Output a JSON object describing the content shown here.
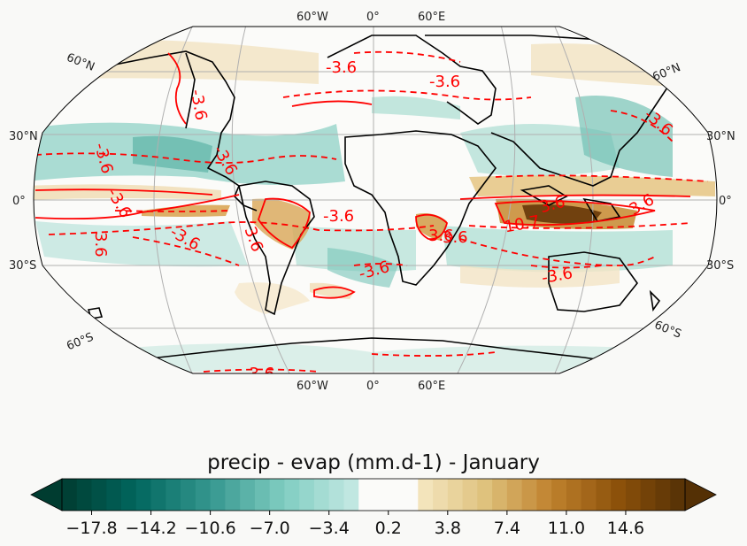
{
  "title": "precip - evap (mm.d-1) - January",
  "map": {
    "projection": "Robinson",
    "top_longitude_labels": [
      "60°W",
      "0°",
      "60°E"
    ],
    "bottom_longitude_labels": [
      "60°W",
      "0°",
      "60°E"
    ],
    "left_latitude_labels": [
      "60°N",
      "30°N",
      "0°",
      "30°S",
      "60°S"
    ],
    "right_latitude_labels": [
      "60°N",
      "30°N",
      "0°",
      "30°S",
      "60°S"
    ],
    "contour_labels": [
      "-3.6",
      "-3.6",
      "-3.6",
      "-3.6",
      "-3.6",
      "-3.6",
      "-3.6",
      "3.6",
      "3.6",
      "-3.6",
      "3.6",
      "-3.6",
      "3.6",
      "3.6",
      "-3.6",
      "-3.6",
      "10.7",
      "3.6",
      "-3.6"
    ],
    "contour_color": "#ff0000",
    "coastline_color": "#000000",
    "gridline_color": "#b0b0b0"
  },
  "colorbar": {
    "tick_labels": [
      "−17.8",
      "−14.2",
      "−10.6",
      "−7.0",
      "−3.4",
      "0.2",
      "3.8",
      "7.4",
      "11.0",
      "14.6"
    ],
    "min": -19.6,
    "max": 18.2,
    "step": 0.9,
    "extend": "both",
    "colormap": "BrBG_r",
    "neutral_band": [
      -1.6,
      2.0
    ],
    "end_colors": {
      "negative": "#003c30",
      "positive": "#543005"
    }
  }
}
